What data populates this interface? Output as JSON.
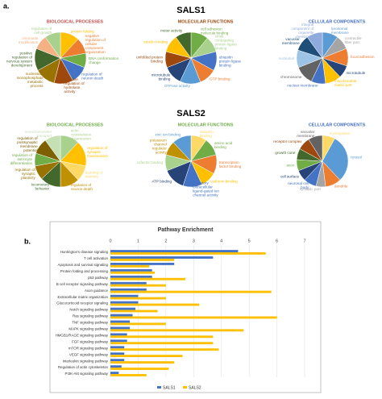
{
  "figure": {
    "panel_a": "a.",
    "panel_b": "b.",
    "group1": "SALS1",
    "group2": "SALS2"
  },
  "chart_data": [
    {
      "type": "pie",
      "title": "BIOLOGICAL PROCESSES",
      "title_color": "#c0504d",
      "categories": [
        "protein folding",
        "negative regulation of cellular component organization",
        "DNA conformation change",
        "regulation of neuron death",
        "negative regulation of hydrolase activity",
        "nucleoside monophosphate metabolic process",
        "positive regulation of nervous system development",
        "chromatin modification",
        "regulation of cell growth"
      ],
      "values": [
        12,
        10,
        9,
        11,
        12,
        13,
        14,
        9,
        10
      ],
      "colors": [
        "#ffc000",
        "#ed7d31",
        "#70ad47",
        "#4472c4",
        "#9e480e",
        "#997300",
        "#43682b",
        "#f4b183",
        "#a9d18e"
      ]
    },
    {
      "type": "pie",
      "title": "MOLECULAR FUNCTIONS",
      "title_color": "#9e480e",
      "categories": [
        "cell adhesion molecule binding",
        "small conjugating protein ligase binding",
        "ubiquitin protein ligase binding",
        "GTP binding",
        "GTPase activity",
        "microtubule binding",
        "unfolded protein binding",
        "tubulin binding",
        "motor activity"
      ],
      "values": [
        11,
        10,
        12,
        11,
        13,
        12,
        10,
        11,
        10
      ],
      "colors": [
        "#70ad47",
        "#a9d18e",
        "#4472c4",
        "#ed7d31",
        "#5b9bd5",
        "#264478",
        "#9e480e",
        "#ffc000",
        "#43682b"
      ]
    },
    {
      "type": "pie",
      "title": "CELLULAR COMPONENTS",
      "title_color": "#4472c4",
      "categories": [
        "lysosomal membrane",
        "contractile fiber part",
        "focal adhesion",
        "microtubule",
        "mitochondrial matrix part",
        "nuclear membrane",
        "chromosome",
        "nucleolus",
        "vacuolar membrane",
        "integral component of organelle membrane"
      ],
      "values": [
        10,
        9,
        11,
        8,
        10,
        9,
        12,
        11,
        10,
        10
      ],
      "colors": [
        "#5b9bd5",
        "#a5a5a5",
        "#ed7d31",
        "#264478",
        "#ffc000",
        "#4472c4",
        "#636363",
        "#9dc3e6",
        "#1f4e79",
        "#8faadc"
      ]
    },
    {
      "type": "pie",
      "title": "BIOLOGICAL PROCESSES",
      "title_color": "#70ad47",
      "categories": [
        "actin cytoskeleton organization",
        "regulation of synaptic transmission",
        "learning or memory",
        "regulation of neuron death",
        "locomotory behavior",
        "regulation of synaptic plasticity",
        "regulation of astrocyte differentiation",
        "regulation of postsynaptic membrane potential",
        "neurotransmitter transport"
      ],
      "values": [
        12,
        16,
        10,
        12,
        13,
        9,
        8,
        10,
        10
      ],
      "colors": [
        "#a9d18e",
        "#ffc000",
        "#ffd966",
        "#bf9000",
        "#43682b",
        "#997300",
        "#70ad47",
        "#7f6000",
        "#c5e0b4"
      ]
    },
    {
      "type": "pie",
      "title": "MOLECULAR FUNCTIONS",
      "title_color": "#70ad47",
      "categories": [
        "ubiquitin binding",
        "amino acid binding",
        "transcription factor binding",
        "cadherin binding",
        "excitatory extracellular ligand-gated ion channel activity",
        "ATP binding",
        "cofactor binding",
        "potassium channel regulator activity",
        "zinc ion binding"
      ],
      "values": [
        10,
        11,
        12,
        10,
        12,
        14,
        10,
        9,
        12
      ],
      "colors": [
        "#ffd966",
        "#70ad47",
        "#ed7d31",
        "#ffc000",
        "#4472c4",
        "#264478",
        "#a9d18e",
        "#bf9000",
        "#5b9bd5"
      ]
    },
    {
      "type": "pie",
      "title": "CELLULAR COMPONENTS",
      "title_color": "#4472c4",
      "categories": [
        "nucleoplasm",
        "cytosol",
        "dendrite",
        "synaptic part",
        "neuronal cell body",
        "cell surface",
        "axon",
        "growth cone",
        "receptor complex",
        "vacuolar membrane"
      ],
      "values": [
        8,
        30,
        10,
        6,
        8,
        7,
        7,
        7,
        8,
        9
      ],
      "colors": [
        "#ffd966",
        "#5b9bd5",
        "#ed7d31",
        "#a5a5a5",
        "#4472c4",
        "#264478",
        "#70ad47",
        "#43682b",
        "#9e480e",
        "#636363"
      ]
    },
    {
      "type": "bar",
      "orientation": "horizontal",
      "title": "Pathway Enrichment",
      "categories": [
        "Huntington's disease signaling",
        "T cell activation",
        "Apoptosis and survival signaling",
        "Protein folding and processing",
        "p53 pathway",
        "B cell receptor signaling pathway",
        "Axon guidance",
        "Extracellular matrix organization",
        "Glucocorticoid receptor signaling",
        "Notch signaling pathway",
        "Ras signaling pathway",
        "TNF signaling pathway",
        "MAPK signaling pathway",
        "HMGB1/RAGE signaling pathway",
        "FGF signaling pathway",
        "mTOR signaling pathway",
        "VEGF signaling pathway",
        "Interleukin signaling pathway",
        "Regulation of actin cytoskeleton",
        "PI3K-Akt signaling pathway"
      ],
      "series": [
        {
          "name": "SALS1",
          "color": "#4472c4",
          "values": [
            4.6,
            3.7,
            2.3,
            1.5,
            1.5,
            1.3,
            1.3,
            1.0,
            1.0,
            0.9,
            0.8,
            0.7,
            0.7,
            0.6,
            0.6,
            0.5,
            0.5,
            0.5,
            0.4,
            0.3
          ]
        },
        {
          "name": "SALS2",
          "color": "#ffc000",
          "values": [
            5.6,
            2.3,
            1.4,
            1.6,
            2.7,
            2.0,
            5.8,
            2.0,
            3.2,
            1.7,
            6.0,
            2.0,
            4.8,
            3.7,
            3.7,
            3.9,
            2.6,
            2.3,
            2.1,
            1.3
          ]
        }
      ],
      "xlim": [
        0,
        7
      ],
      "xticks": [
        0,
        1,
        2,
        3,
        4,
        5,
        6,
        7
      ],
      "grid": true,
      "legend": "bottom"
    }
  ]
}
